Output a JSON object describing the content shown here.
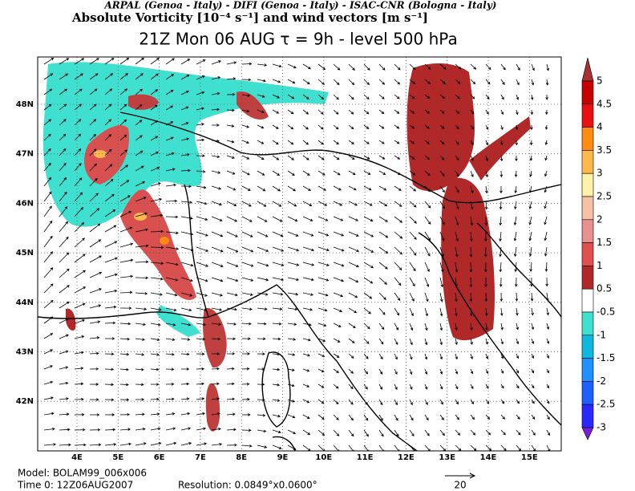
{
  "header": {
    "institutions": "ARPAL (Genoa - Italy)  -  DIFI (Genoa - Italy)  -  ISAC-CNR (Bologna - Italy)",
    "field": "Absolute Vorticity [10⁻⁴ s⁻¹] and wind vectors [m s⁻¹]",
    "time": "21Z Mon 06 AUG  τ = 9h  -  level 500 hPa"
  },
  "map": {
    "lon_labels": [
      "4E",
      "5E",
      "6E",
      "7E",
      "8E",
      "9E",
      "10E",
      "11E",
      "12E",
      "13E",
      "14E",
      "15E"
    ],
    "lat_labels": [
      "48N",
      "47N",
      "46N",
      "45N",
      "44N",
      "43N",
      "42N"
    ]
  },
  "legend": {
    "labels": [
      "5",
      "4.5",
      "4",
      "3.5",
      "3",
      "2.5",
      "2",
      "1.5",
      "1",
      "0.5",
      "-0.5",
      "-1",
      "-1.5",
      "-2",
      "-2.5",
      "-3"
    ],
    "colors": [
      "#a83232",
      "#c80000",
      "#e81010",
      "#ff8c10",
      "#ffb84a",
      "#fff2a8",
      "#f6c2a6",
      "#e89090",
      "#e05050",
      "#b02828",
      "#ffffff",
      "#40e0d0",
      "#10b8e0",
      "#1e90ff",
      "#1e60ff",
      "#2828ff",
      "#7a1ed8"
    ]
  },
  "footer": {
    "model": "Model: BOLAM99_006x006",
    "time0": "Time 0: 12Z06AUG2007",
    "resolution": "Resolution: 0.0849°x0.0600°",
    "scale": "20"
  }
}
